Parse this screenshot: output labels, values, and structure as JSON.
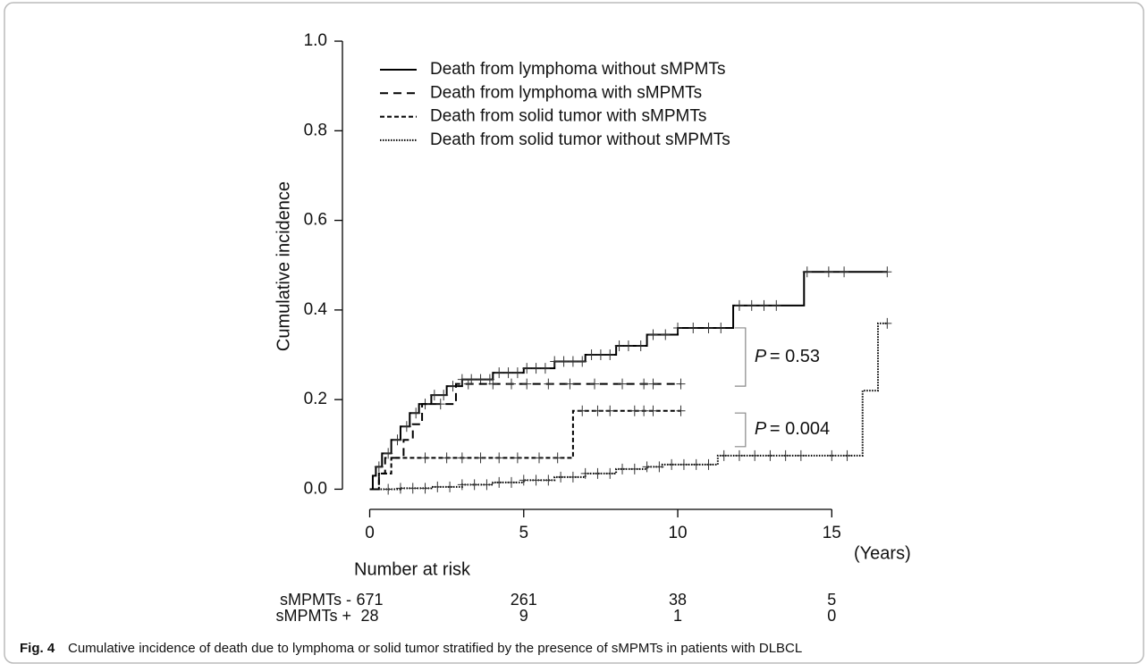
{
  "chart_data": {
    "type": "step",
    "y_label": "Cumulative incidence",
    "x_unit": "(Years)",
    "xlim": [
      -0.45,
      17.4
    ],
    "xticks": [
      0,
      5,
      10,
      15
    ],
    "ylim": [
      -0.045,
      1.04
    ],
    "yticks": [
      {
        "value": 0,
        "label": "0.0"
      },
      {
        "value": 0.2,
        "label": "0.2"
      },
      {
        "value": 0.4,
        "label": "0.4"
      },
      {
        "value": 0.6,
        "label": "0.6"
      },
      {
        "value": 0.8,
        "label": "0.8"
      },
      {
        "value": 1,
        "label": "1.0"
      }
    ],
    "series": [
      {
        "name": "Death from lymphoma without sMPMTs",
        "color": "#000000",
        "dash": "solid",
        "x": [
          0,
          0.1,
          0.2,
          0.4,
          0.7,
          1,
          1.3,
          1.6,
          2,
          2.5,
          3,
          4,
          5,
          6,
          7,
          8,
          9,
          10,
          11.8,
          14.1,
          16.8
        ],
        "values": [
          0,
          0.03,
          0.05,
          0.08,
          0.11,
          0.14,
          0.17,
          0.19,
          0.21,
          0.23,
          0.245,
          0.26,
          0.27,
          0.285,
          0.3,
          0.32,
          0.345,
          0.36,
          0.41,
          0.485,
          0.485
        ],
        "censored": [
          0.3,
          0.6,
          0.9,
          1.2,
          1.5,
          1.8,
          2.1,
          2.4,
          2.7,
          3.0,
          3.3,
          3.6,
          3.9,
          4.2,
          4.5,
          4.8,
          5.1,
          5.4,
          5.7,
          6.0,
          6.3,
          6.6,
          6.9,
          7.2,
          7.5,
          7.8,
          8.1,
          8.4,
          8.8,
          9.2,
          9.6,
          10.0,
          10.5,
          11.0,
          11.4,
          12.0,
          12.4,
          12.8,
          13.2,
          14.2,
          14.9,
          15.4,
          16.8
        ]
      },
      {
        "name": "Death from lymphoma with sMPMTs",
        "color": "#000000",
        "dash": "long",
        "x": [
          0,
          0.3,
          0.5,
          1.1,
          1.4,
          1.7,
          2.8,
          10.1
        ],
        "values": [
          0,
          0.035,
          0.07,
          0.11,
          0.145,
          0.19,
          0.235,
          0.235
        ],
        "censored": [
          2.3,
          3.2,
          4.0,
          4.6,
          5.1,
          5.8,
          6.5,
          7.3,
          8.2,
          8.9,
          9.2,
          10.1
        ]
      },
      {
        "name": "Death from solid tumor with sMPMTs",
        "color": "#000000",
        "dash": "short",
        "x": [
          0,
          0.3,
          0.7,
          6.6,
          10.1
        ],
        "values": [
          0,
          0.035,
          0.07,
          0.175,
          0.175
        ],
        "censored": [
          1.8,
          2.5,
          3.0,
          3.6,
          4.2,
          4.8,
          5.5,
          6.1,
          6.9,
          7.4,
          7.8,
          8.6,
          8.9,
          9.2,
          10.1
        ]
      },
      {
        "name": "Death from solid tumor without sMPMTs",
        "color": "#000000",
        "dash": "dotted",
        "x": [
          0,
          1,
          2,
          3,
          4,
          5,
          6,
          7,
          8,
          9,
          9.5,
          11.3,
          16.0,
          16.5,
          16.8
        ],
        "values": [
          0,
          0.002,
          0.005,
          0.01,
          0.015,
          0.02,
          0.027,
          0.035,
          0.045,
          0.05,
          0.055,
          0.075,
          0.22,
          0.37,
          0.37
        ],
        "censored": [
          0.6,
          1.0,
          1.4,
          1.8,
          2.2,
          2.6,
          3.0,
          3.4,
          3.8,
          4.2,
          4.6,
          5.0,
          5.4,
          5.8,
          6.2,
          6.6,
          7.0,
          7.4,
          7.8,
          8.2,
          8.6,
          9.0,
          9.4,
          9.8,
          10.2,
          10.6,
          11.0,
          11.5,
          12.0,
          12.5,
          13.0,
          13.5,
          14.0,
          15.0,
          15.5,
          16.8
        ]
      }
    ],
    "annotations": [
      {
        "symbol": "P",
        "text": "= 0.53"
      },
      {
        "symbol": "P",
        "text": "= 0.004"
      }
    ],
    "risk_table": {
      "title": "Number at risk",
      "rows": [
        {
          "label": "sMPMTs -",
          "values": [
            671,
            261,
            38,
            5
          ]
        },
        {
          "label": "sMPMTs +",
          "values": [
            28,
            9,
            1,
            0
          ]
        }
      ]
    },
    "caption": {
      "label": "Fig. 4",
      "text": "Cumulative incidence of death due to lymphoma or solid tumor stratified by the presence of sMPMTs in patients with DLBCL"
    }
  }
}
